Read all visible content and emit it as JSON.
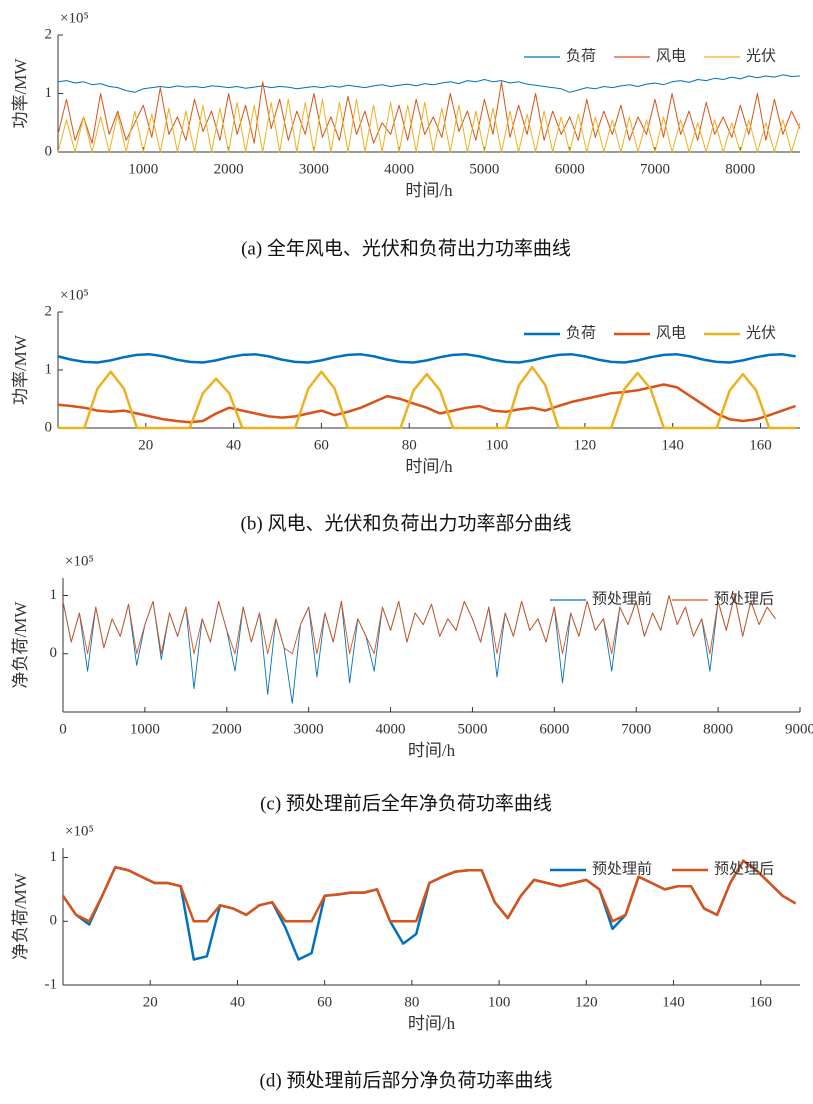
{
  "chart_data": [
    {
      "type": "line",
      "caption": "(a)  全年风电、光伏和负荷出力功率曲线",
      "xlabel": "时间/h",
      "ylabel": "功率/MW",
      "y_exponent": "×10⁵",
      "xlim": [
        0,
        8700
      ],
      "xticks": [
        1000,
        2000,
        3000,
        4000,
        5000,
        6000,
        7000,
        8000
      ],
      "ylim": [
        0,
        2
      ],
      "yticks": [
        0,
        1,
        2
      ],
      "legend": "northeast",
      "x": [
        0,
        100,
        200,
        300,
        400,
        500,
        600,
        700,
        800,
        900,
        1000,
        1100,
        1200,
        1300,
        1400,
        1500,
        1600,
        1700,
        1800,
        1900,
        2000,
        2100,
        2200,
        2300,
        2400,
        2500,
        2600,
        2700,
        2800,
        2900,
        3000,
        3100,
        3200,
        3300,
        3400,
        3500,
        3600,
        3700,
        3800,
        3900,
        4000,
        4100,
        4200,
        4300,
        4400,
        4500,
        4600,
        4700,
        4800,
        4900,
        5000,
        5100,
        5200,
        5300,
        5400,
        5500,
        5600,
        5700,
        5800,
        5900,
        6000,
        6100,
        6200,
        6300,
        6400,
        6500,
        6600,
        6700,
        6800,
        6900,
        7000,
        7100,
        7200,
        7300,
        7400,
        7500,
        7600,
        7700,
        7800,
        7900,
        8000,
        8100,
        8200,
        8300,
        8400,
        8500,
        8600,
        8700
      ],
      "series": [
        {
          "name": "负荷",
          "color": "#0072bd",
          "values": [
            1.2,
            1.22,
            1.18,
            1.2,
            1.15,
            1.17,
            1.12,
            1.1,
            1.05,
            1.02,
            1.08,
            1.1,
            1.12,
            1.1,
            1.13,
            1.11,
            1.12,
            1.1,
            1.13,
            1.12,
            1.1,
            1.12,
            1.09,
            1.11,
            1.13,
            1.1,
            1.12,
            1.11,
            1.08,
            1.1,
            1.12,
            1.1,
            1.13,
            1.11,
            1.14,
            1.12,
            1.1,
            1.13,
            1.15,
            1.12,
            1.14,
            1.16,
            1.13,
            1.17,
            1.15,
            1.18,
            1.2,
            1.17,
            1.22,
            1.2,
            1.24,
            1.2,
            1.22,
            1.18,
            1.2,
            1.16,
            1.14,
            1.12,
            1.1,
            1.08,
            1.02,
            1.06,
            1.1,
            1.08,
            1.12,
            1.1,
            1.13,
            1.15,
            1.12,
            1.16,
            1.18,
            1.15,
            1.2,
            1.22,
            1.19,
            1.24,
            1.22,
            1.26,
            1.24,
            1.28,
            1.25,
            1.3,
            1.27,
            1.3,
            1.28,
            1.32,
            1.29,
            1.3
          ]
        },
        {
          "name": "风电",
          "color": "#d95319",
          "values": [
            0.3,
            0.9,
            0.2,
            0.6,
            0.15,
            1.0,
            0.3,
            0.7,
            0.2,
            0.5,
            0.8,
            0.25,
            1.1,
            0.3,
            0.6,
            0.2,
            0.9,
            0.35,
            0.7,
            0.2,
            1.0,
            0.3,
            0.8,
            0.15,
            1.2,
            0.4,
            0.9,
            0.2,
            0.7,
            0.3,
            1.0,
            0.25,
            0.6,
            0.2,
            0.95,
            0.3,
            0.7,
            0.15,
            0.5,
            0.3,
            0.8,
            0.2,
            0.9,
            0.3,
            0.6,
            0.25,
            1.0,
            0.35,
            0.7,
            0.2,
            0.9,
            0.3,
            1.2,
            0.25,
            0.8,
            0.3,
            1.0,
            0.2,
            0.7,
            0.3,
            0.6,
            0.2,
            0.9,
            0.25,
            0.7,
            0.3,
            0.8,
            0.2,
            0.6,
            0.3,
            0.9,
            0.25,
            1.0,
            0.3,
            0.7,
            0.2,
            0.85,
            0.3,
            0.6,
            0.25,
            0.8,
            0.3,
            1.0,
            0.2,
            0.9,
            0.3,
            0.7,
            0.4
          ]
        },
        {
          "name": "光伏",
          "color": "#edb120",
          "values": [
            0,
            0.55,
            0,
            0.6,
            0,
            0.6,
            0,
            0.65,
            0,
            0.7,
            0,
            0.65,
            0,
            0.75,
            0,
            0.7,
            0,
            0.8,
            0,
            0.75,
            0,
            0.85,
            0,
            0.8,
            0,
            0.85,
            0,
            0.9,
            0,
            0.85,
            0,
            0.9,
            0,
            0.85,
            0,
            0.9,
            0,
            0.8,
            0,
            0.85,
            0,
            0.8,
            0,
            0.85,
            0,
            0.75,
            0,
            0.8,
            0,
            0.7,
            0,
            0.75,
            0,
            0.7,
            0,
            0.65,
            0,
            0.7,
            0,
            0.6,
            0,
            0.65,
            0,
            0.6,
            0,
            0.55,
            0,
            0.6,
            0,
            0.55,
            0,
            0.6,
            0,
            0.55,
            0,
            0.5,
            0,
            0.55,
            0,
            0.5,
            0,
            0.55,
            0,
            0.5,
            0,
            0.55,
            0,
            0.5
          ]
        }
      ]
    },
    {
      "type": "line",
      "caption": "(b)  风电、光伏和负荷出力功率部分曲线",
      "xlabel": "时间/h",
      "ylabel": "功率/MW",
      "y_exponent": "×10⁵",
      "xlim": [
        0,
        169
      ],
      "xticks": [
        20,
        40,
        60,
        80,
        100,
        120,
        140,
        160
      ],
      "ylim": [
        0,
        2
      ],
      "yticks": [
        0,
        1,
        2
      ],
      "legend": "northeast",
      "x": [
        0,
        3,
        6,
        9,
        12,
        15,
        18,
        21,
        24,
        27,
        30,
        33,
        36,
        39,
        42,
        45,
        48,
        51,
        54,
        57,
        60,
        63,
        66,
        69,
        72,
        75,
        78,
        81,
        84,
        87,
        90,
        93,
        96,
        99,
        102,
        105,
        108,
        111,
        114,
        117,
        120,
        123,
        126,
        129,
        132,
        135,
        138,
        141,
        144,
        147,
        150,
        153,
        156,
        159,
        162,
        165,
        168
      ],
      "series": [
        {
          "name": "负荷",
          "color": "#0072bd",
          "values": [
            1.235,
            1.18,
            1.14,
            1.13,
            1.165,
            1.22,
            1.26,
            1.27,
            1.235,
            1.18,
            1.14,
            1.13,
            1.165,
            1.22,
            1.26,
            1.27,
            1.235,
            1.18,
            1.14,
            1.13,
            1.165,
            1.22,
            1.26,
            1.27,
            1.235,
            1.18,
            1.14,
            1.13,
            1.165,
            1.22,
            1.26,
            1.27,
            1.235,
            1.18,
            1.14,
            1.13,
            1.165,
            1.22,
            1.26,
            1.27,
            1.235,
            1.18,
            1.14,
            1.13,
            1.165,
            1.22,
            1.26,
            1.27,
            1.235,
            1.18,
            1.14,
            1.13,
            1.165,
            1.22,
            1.26,
            1.27,
            1.235
          ]
        },
        {
          "name": "风电",
          "color": "#d95319",
          "values": [
            0.4,
            0.38,
            0.35,
            0.3,
            0.28,
            0.3,
            0.25,
            0.2,
            0.15,
            0.12,
            0.1,
            0.12,
            0.25,
            0.35,
            0.3,
            0.25,
            0.2,
            0.18,
            0.2,
            0.25,
            0.3,
            0.22,
            0.28,
            0.35,
            0.45,
            0.55,
            0.5,
            0.42,
            0.35,
            0.25,
            0.3,
            0.35,
            0.38,
            0.3,
            0.28,
            0.32,
            0.35,
            0.3,
            0.38,
            0.45,
            0.5,
            0.55,
            0.6,
            0.62,
            0.65,
            0.7,
            0.75,
            0.7,
            0.55,
            0.4,
            0.25,
            0.15,
            0.12,
            0.15,
            0.22,
            0.3,
            0.38
          ]
        },
        {
          "name": "光伏",
          "color": "#edb120",
          "values": [
            0,
            0,
            0,
            0.68,
            0.97,
            0.68,
            0,
            0,
            0,
            0,
            0,
            0.6,
            0.85,
            0.6,
            0,
            0,
            0,
            0,
            0,
            0.68,
            0.97,
            0.68,
            0,
            0,
            0,
            0,
            0,
            0.65,
            0.93,
            0.65,
            0,
            0,
            0,
            0,
            0,
            0.74,
            1.05,
            0.74,
            0,
            0,
            0,
            0,
            0,
            0.67,
            0.95,
            0.67,
            0,
            0,
            0,
            0,
            0,
            0.65,
            0.93,
            0.65,
            0,
            0,
            0
          ]
        }
      ]
    },
    {
      "type": "line",
      "caption": "(c)  预处理前后全年净负荷功率曲线",
      "xlabel": "时间/h",
      "ylabel": "净负荷/MW",
      "y_exponent": "×10⁵",
      "xlim": [
        0,
        9000
      ],
      "xticks": [
        0,
        1000,
        2000,
        3000,
        4000,
        5000,
        6000,
        7000,
        8000,
        9000
      ],
      "ylim": [
        -1,
        1.3
      ],
      "yticks": [
        0,
        1
      ],
      "legend": "northeast",
      "x": [
        0,
        100,
        200,
        300,
        400,
        500,
        600,
        700,
        800,
        900,
        1000,
        1100,
        1200,
        1300,
        1400,
        1500,
        1600,
        1700,
        1800,
        1900,
        2000,
        2100,
        2200,
        2300,
        2400,
        2500,
        2600,
        2700,
        2800,
        2900,
        3000,
        3100,
        3200,
        3300,
        3400,
        3500,
        3600,
        3700,
        3800,
        3900,
        4000,
        4100,
        4200,
        4300,
        4400,
        4500,
        4600,
        4700,
        4800,
        4900,
        5000,
        5100,
        5200,
        5300,
        5400,
        5500,
        5600,
        5700,
        5800,
        5900,
        6000,
        6100,
        6200,
        6300,
        6400,
        6500,
        6600,
        6700,
        6800,
        6900,
        7000,
        7100,
        7200,
        7300,
        7400,
        7500,
        7600,
        7700,
        7800,
        7900,
        8000,
        8100,
        8200,
        8300,
        8400,
        8500,
        8600,
        8700
      ],
      "series": [
        {
          "name": "预处理前",
          "color": "#0072bd",
          "values": [
            0.9,
            0.2,
            0.7,
            -0.3,
            0.8,
            0.1,
            0.6,
            0.3,
            0.85,
            -0.2,
            0.5,
            0.9,
            -0.1,
            0.7,
            0.3,
            0.8,
            -0.6,
            0.6,
            0.2,
            0.9,
            0.4,
            -0.3,
            0.8,
            0.2,
            0.7,
            -0.7,
            0.6,
            0.1,
            -0.85,
            0.5,
            0.8,
            -0.4,
            0.7,
            0.2,
            0.9,
            -0.5,
            0.6,
            0.3,
            -0.3,
            0.8,
            0.4,
            0.9,
            0.2,
            0.7,
            0.5,
            0.85,
            0.3,
            0.6,
            0.4,
            0.9,
            0.6,
            0.2,
            0.8,
            -0.4,
            0.7,
            0.3,
            0.9,
            0.4,
            0.6,
            0.2,
            0.8,
            -0.5,
            0.7,
            0.3,
            0.9,
            0.4,
            0.6,
            -0.3,
            0.8,
            0.5,
            0.9,
            0.3,
            0.7,
            0.4,
            1.0,
            0.5,
            0.8,
            0.3,
            0.6,
            -0.3,
            0.9,
            0.4,
            1.0,
            0.3,
            0.9,
            0.5,
            0.8,
            0.6
          ]
        },
        {
          "name": "预处理后",
          "color": "#d95319",
          "values": [
            0.9,
            0.2,
            0.7,
            0,
            0.8,
            0.1,
            0.6,
            0.3,
            0.85,
            0,
            0.5,
            0.9,
            0,
            0.7,
            0.3,
            0.8,
            0,
            0.6,
            0.2,
            0.9,
            0.4,
            0,
            0.8,
            0.2,
            0.7,
            0,
            0.6,
            0.1,
            0,
            0.5,
            0.8,
            0,
            0.7,
            0.2,
            0.9,
            0,
            0.6,
            0.3,
            0,
            0.8,
            0.4,
            0.9,
            0.2,
            0.7,
            0.5,
            0.85,
            0.3,
            0.6,
            0.4,
            0.9,
            0.6,
            0.2,
            0.8,
            0,
            0.7,
            0.3,
            0.9,
            0.4,
            0.6,
            0.2,
            0.8,
            0,
            0.7,
            0.3,
            0.9,
            0.4,
            0.6,
            0,
            0.8,
            0.5,
            0.9,
            0.3,
            0.7,
            0.4,
            1.0,
            0.5,
            0.8,
            0.3,
            0.6,
            0,
            0.9,
            0.4,
            1.0,
            0.3,
            0.9,
            0.5,
            0.8,
            0.6
          ]
        }
      ]
    },
    {
      "type": "line",
      "caption": "(d)  预处理前后部分净负荷功率曲线",
      "xlabel": "时间/h",
      "ylabel": "净负荷/MW",
      "y_exponent": "×10⁵",
      "xlim": [
        0,
        169
      ],
      "xticks": [
        20,
        40,
        60,
        80,
        100,
        120,
        140,
        160
      ],
      "ylim": [
        -1,
        1.15
      ],
      "yticks": [
        -1,
        0,
        1
      ],
      "legend": "northeast",
      "x": [
        0,
        3,
        6,
        9,
        12,
        15,
        18,
        21,
        24,
        27,
        30,
        33,
        36,
        39,
        42,
        45,
        48,
        51,
        54,
        57,
        60,
        63,
        66,
        69,
        72,
        75,
        78,
        81,
        84,
        87,
        90,
        93,
        96,
        99,
        102,
        105,
        108,
        111,
        114,
        117,
        120,
        123,
        126,
        129,
        132,
        135,
        138,
        141,
        144,
        147,
        150,
        153,
        156,
        159,
        162,
        165,
        168
      ],
      "series": [
        {
          "name": "预处理前",
          "color": "#0072bd",
          "values": [
            0.4,
            0.1,
            -0.05,
            0.4,
            0.85,
            0.8,
            0.7,
            0.6,
            0.6,
            0.55,
            -0.6,
            -0.55,
            0.25,
            0.2,
            0.1,
            0.25,
            0.3,
            -0.1,
            -0.6,
            -0.5,
            0.4,
            0.42,
            0.45,
            0.45,
            0.5,
            0.0,
            -0.35,
            -0.2,
            0.6,
            0.7,
            0.78,
            0.8,
            0.8,
            0.3,
            0.05,
            0.4,
            0.65,
            0.6,
            0.55,
            0.6,
            0.65,
            0.5,
            -0.12,
            0.1,
            0.7,
            0.6,
            0.5,
            0.55,
            0.55,
            0.2,
            0.1,
            0.6,
            0.95,
            0.8,
            0.6,
            0.4,
            0.28
          ]
        },
        {
          "name": "预处理后",
          "color": "#d95319",
          "values": [
            0.4,
            0.1,
            0,
            0.4,
            0.85,
            0.8,
            0.7,
            0.6,
            0.6,
            0.55,
            0,
            0,
            0.25,
            0.2,
            0.1,
            0.25,
            0.3,
            0,
            0,
            0,
            0.4,
            0.42,
            0.45,
            0.45,
            0.5,
            0,
            0,
            0,
            0.6,
            0.7,
            0.78,
            0.8,
            0.8,
            0.3,
            0.05,
            0.4,
            0.65,
            0.6,
            0.55,
            0.6,
            0.65,
            0.5,
            0,
            0.1,
            0.7,
            0.6,
            0.5,
            0.55,
            0.55,
            0.2,
            0.1,
            0.6,
            0.95,
            0.8,
            0.6,
            0.4,
            0.28
          ]
        }
      ]
    }
  ]
}
